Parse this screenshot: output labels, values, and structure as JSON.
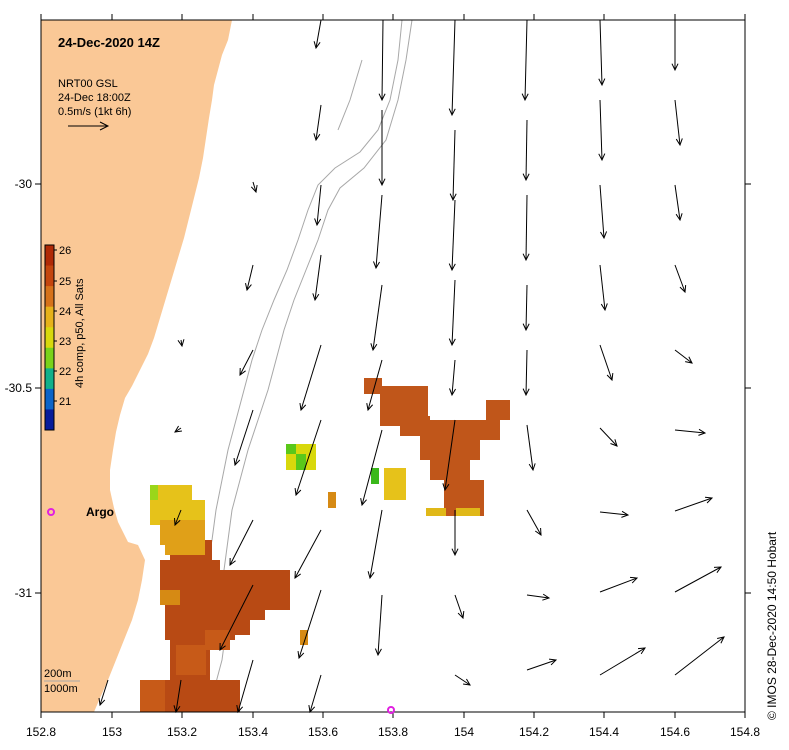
{
  "map": {
    "title": "24-Dec-2020 14Z",
    "info_lines": [
      "NRT00 GSL",
      "24-Dec 18:00Z",
      "0.5m/s (1kt 6h)"
    ],
    "x_ticks": [
      "152.8",
      "153",
      "153.2",
      "153.4",
      "153.6",
      "153.8",
      "154",
      "154.2",
      "154.4",
      "154.6",
      "154.8"
    ],
    "y_ticks": [
      "-30",
      "-30.5",
      "-31"
    ],
    "colorbar_title": "4h comp, p50, All Sats",
    "colorbar_ticks": [
      "26",
      "25",
      "24",
      "23",
      "22",
      "21"
    ],
    "colorbar_colors": [
      "#b02a06",
      "#c4460e",
      "#d6721a",
      "#e6b21a",
      "#d8d80c",
      "#7ad21a",
      "#12b08a",
      "#0c64c8",
      "#081c9a"
    ],
    "argo_label": "Argo",
    "depth_legend": [
      "200m",
      "1000m"
    ],
    "credit": "© IMOS 28-Dec-2020 14:50 Hobart",
    "land_color": "#fac896",
    "marker_color": "#e020e0"
  }
}
